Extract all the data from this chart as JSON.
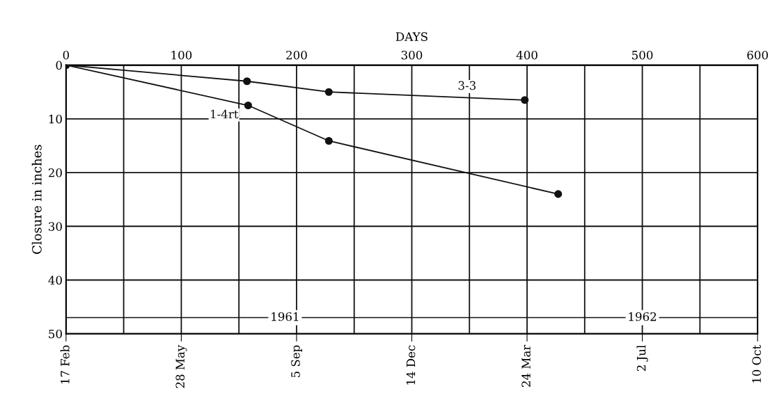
{
  "chart_data": {
    "type": "line",
    "x2label": "DAYS",
    "ylabel": "Closure in inches",
    "xlim": [
      "1961-02-17",
      "1962-10-10"
    ],
    "xticks": [
      {
        "value": "1961-02-17",
        "label": "17 Feb"
      },
      {
        "value": "1961-05-28",
        "label": "28 May"
      },
      {
        "value": "1961-09-05",
        "label": "5 Sep"
      },
      {
        "value": "1961-12-14",
        "label": "14 Dec"
      },
      {
        "value": "1962-03-24",
        "label": "24 Mar"
      },
      {
        "value": "1962-07-02",
        "label": "2 Jul"
      },
      {
        "value": "1962-10-10",
        "label": "10 Oct"
      }
    ],
    "x2lim": [
      0,
      600
    ],
    "x2ticks": [
      0,
      {
        "value": 50,
        "label": null
      },
      100,
      {
        "value": 150,
        "label": null
      },
      200,
      {
        "value": 250,
        "label": null
      },
      300,
      {
        "value": 350,
        "label": null
      },
      400,
      {
        "value": 450,
        "label": null
      },
      500,
      {
        "value": 550,
        "label": null
      },
      600
    ],
    "ylim": [
      50,
      0
    ],
    "yticks": [
      0,
      10,
      20,
      30,
      40,
      50
    ],
    "grid": true,
    "marker": "circle",
    "line_style": "solid",
    "series": [
      {
        "name": "3-3",
        "color": "#111111",
        "x": [
          "1961-02-17",
          "1961-07-24",
          "1961-10-03",
          "1962-03-22"
        ],
        "values": [
          0,
          3,
          5,
          6.5
        ]
      },
      {
        "name": "1-4rt",
        "color": "#111111",
        "x": [
          "1961-02-17",
          "1961-07-25",
          "1961-10-03",
          "1962-04-20"
        ],
        "values": [
          0,
          7.5,
          14.1,
          24
        ]
      }
    ],
    "ref_lines": [
      {
        "axis": "y",
        "value": 47,
        "color": "#111111",
        "line_style": "solid"
      }
    ],
    "annotations": [
      {
        "text": "1961",
        "x": "1961-08-26",
        "y": 47
      },
      {
        "text": "1962",
        "x": "1962-07-02",
        "y": 47
      }
    ]
  }
}
